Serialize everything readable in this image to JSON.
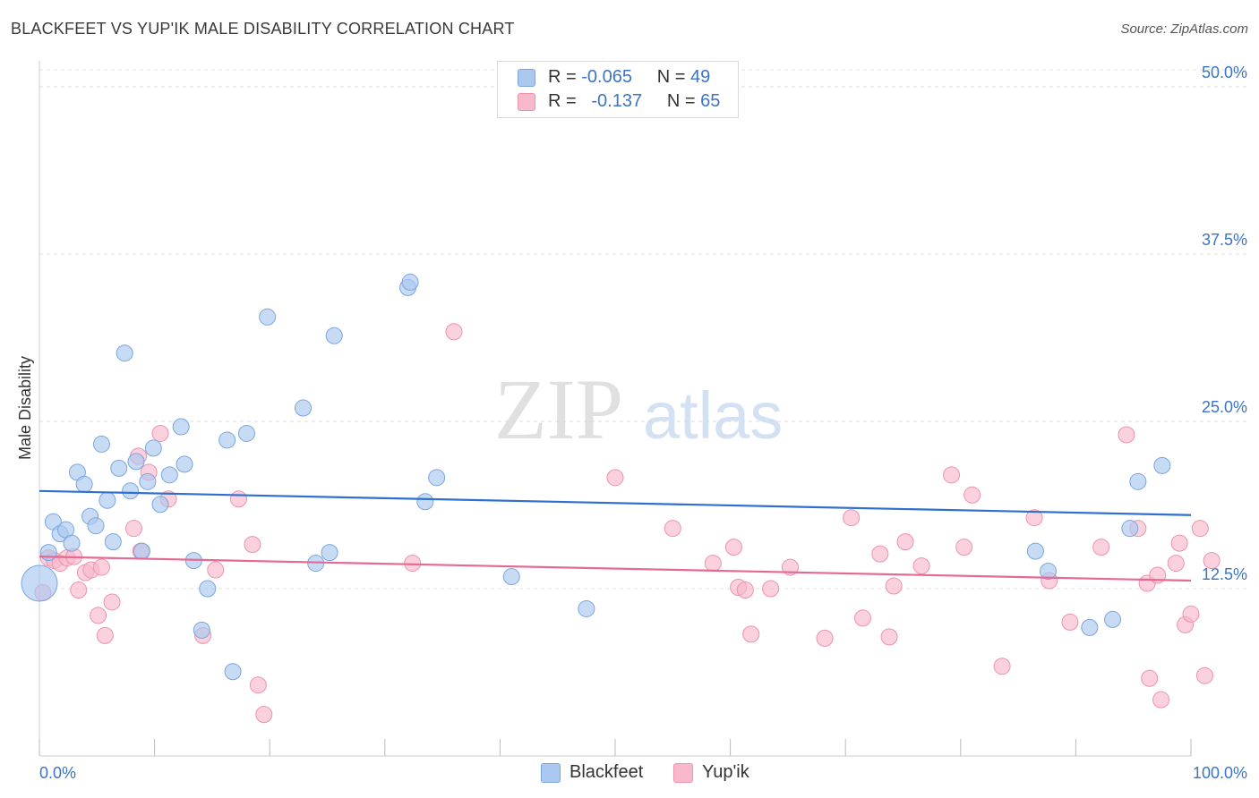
{
  "header": {
    "title": "BLACKFEET VS YUP'IK MALE DISABILITY CORRELATION CHART",
    "source": "Source: ZipAtlas.com"
  },
  "legend": {
    "rows": [
      {
        "r_label": "R =",
        "r_value": "-0.065",
        "n_label": "N =",
        "n_value": "49",
        "color": "#aac8f0"
      },
      {
        "r_label": "R =",
        "r_value": "-0.137",
        "n_label": "N =",
        "n_value": "65",
        "color": "#f7b8cb"
      }
    ]
  },
  "watermark": {
    "zip": "ZIP",
    "atlas": "atlas"
  },
  "colors": {
    "blackfeet_fill": "#aac8f0",
    "blackfeet_stroke": "#7aa6dd",
    "blackfeet_line": "#2f6fd0",
    "yupik_fill": "#f7b8cb",
    "yupik_stroke": "#ec93ae",
    "yupik_line": "#e46a95",
    "axis_label": "#3b73c8",
    "grid": "#dddddd"
  },
  "chart_data": {
    "type": "scatter",
    "title": "BLACKFEET VS YUP'IK MALE DISABILITY CORRELATION CHART",
    "xlabel": "",
    "ylabel": "Male Disability",
    "xlim": [
      0,
      100
    ],
    "ylim": [
      0,
      50
    ],
    "x_tick_labels": [
      "0.0%",
      "100.0%"
    ],
    "y_ticks": [
      12.5,
      25.0,
      37.5,
      50.0
    ],
    "y_tick_labels": [
      "12.5%",
      "25.0%",
      "37.5%",
      "50.0%"
    ],
    "grid": true,
    "legend_position": "bottom-center",
    "series": [
      {
        "name": "Blackfeet",
        "r": -0.065,
        "n": 49,
        "trend": [
          [
            0,
            19.8
          ],
          [
            100,
            18.0
          ]
        ],
        "points": [
          [
            0.0,
            12.9,
            "large"
          ],
          [
            0.8,
            15.2
          ],
          [
            1.2,
            17.5
          ],
          [
            1.8,
            16.6
          ],
          [
            2.3,
            16.9
          ],
          [
            2.8,
            15.9
          ],
          [
            3.3,
            21.2
          ],
          [
            3.9,
            20.3
          ],
          [
            4.4,
            17.9
          ],
          [
            4.9,
            17.2
          ],
          [
            5.4,
            23.3
          ],
          [
            5.9,
            19.1
          ],
          [
            6.4,
            16.0
          ],
          [
            6.9,
            21.5
          ],
          [
            7.4,
            30.1
          ],
          [
            7.9,
            19.8
          ],
          [
            8.4,
            22.0
          ],
          [
            8.9,
            15.3
          ],
          [
            9.4,
            20.5
          ],
          [
            9.9,
            23.0
          ],
          [
            10.5,
            18.8
          ],
          [
            11.3,
            21.0
          ],
          [
            12.3,
            24.6
          ],
          [
            12.6,
            21.8
          ],
          [
            13.4,
            14.6
          ],
          [
            14.1,
            9.4
          ],
          [
            14.6,
            12.5
          ],
          [
            16.3,
            23.6
          ],
          [
            16.8,
            6.3
          ],
          [
            18.0,
            24.1
          ],
          [
            19.8,
            32.8
          ],
          [
            22.9,
            26.0
          ],
          [
            24.0,
            14.4
          ],
          [
            25.2,
            15.2
          ],
          [
            25.6,
            31.4
          ],
          [
            32.0,
            35.0
          ],
          [
            32.2,
            35.4
          ],
          [
            33.5,
            19.0
          ],
          [
            34.5,
            20.8
          ],
          [
            41.0,
            13.4
          ],
          [
            47.5,
            11.0
          ],
          [
            86.5,
            15.3
          ],
          [
            87.6,
            13.8
          ],
          [
            91.2,
            9.6
          ],
          [
            93.2,
            10.2
          ],
          [
            94.7,
            17.0
          ],
          [
            95.4,
            20.5
          ],
          [
            97.5,
            21.7
          ],
          [
            49.4,
            48.9
          ]
        ]
      },
      {
        "name": "Yup'ik",
        "r": -0.137,
        "n": 65,
        "trend": [
          [
            0,
            14.9
          ],
          [
            100,
            13.1
          ]
        ],
        "points": [
          [
            0.3,
            12.2
          ],
          [
            0.8,
            14.8
          ],
          [
            1.3,
            14.6
          ],
          [
            1.8,
            14.4
          ],
          [
            2.4,
            14.8
          ],
          [
            3.0,
            14.9
          ],
          [
            3.4,
            12.4
          ],
          [
            4.0,
            13.7
          ],
          [
            4.5,
            13.9
          ],
          [
            5.1,
            10.5
          ],
          [
            5.4,
            14.1
          ],
          [
            5.7,
            9.0
          ],
          [
            6.3,
            11.5
          ],
          [
            8.2,
            17.0
          ],
          [
            8.6,
            22.4
          ],
          [
            8.8,
            15.3
          ],
          [
            9.5,
            21.2
          ],
          [
            10.5,
            24.1
          ],
          [
            11.2,
            19.2
          ],
          [
            14.2,
            9.0
          ],
          [
            15.3,
            13.9
          ],
          [
            17.3,
            19.2
          ],
          [
            18.5,
            15.8
          ],
          [
            19.0,
            5.3
          ],
          [
            19.5,
            3.1
          ],
          [
            32.4,
            14.4
          ],
          [
            36.0,
            31.7
          ],
          [
            50.0,
            20.8
          ],
          [
            55.0,
            17.0
          ],
          [
            58.5,
            14.4
          ],
          [
            60.3,
            15.6
          ],
          [
            60.7,
            12.6
          ],
          [
            61.3,
            12.4
          ],
          [
            61.8,
            9.1
          ],
          [
            63.5,
            12.5
          ],
          [
            65.2,
            14.1
          ],
          [
            68.2,
            8.8
          ],
          [
            70.5,
            17.8
          ],
          [
            71.5,
            10.3
          ],
          [
            73.0,
            15.1
          ],
          [
            73.8,
            8.9
          ],
          [
            74.2,
            12.7
          ],
          [
            75.2,
            16.0
          ],
          [
            76.6,
            14.2
          ],
          [
            79.2,
            21.0
          ],
          [
            80.3,
            15.6
          ],
          [
            81.0,
            19.5
          ],
          [
            83.6,
            6.7
          ],
          [
            86.4,
            17.8
          ],
          [
            87.7,
            13.1
          ],
          [
            89.5,
            10.0
          ],
          [
            92.2,
            15.6
          ],
          [
            94.4,
            24.0
          ],
          [
            95.4,
            17.0
          ],
          [
            96.2,
            12.9
          ],
          [
            96.4,
            5.8
          ],
          [
            97.4,
            4.2
          ],
          [
            98.7,
            14.4
          ],
          [
            99.5,
            9.8
          ],
          [
            100.0,
            10.6
          ],
          [
            101.2,
            6.0
          ],
          [
            101.8,
            14.6
          ],
          [
            97.1,
            13.5
          ],
          [
            99.0,
            15.9
          ],
          [
            100.8,
            17.0
          ]
        ]
      }
    ]
  }
}
